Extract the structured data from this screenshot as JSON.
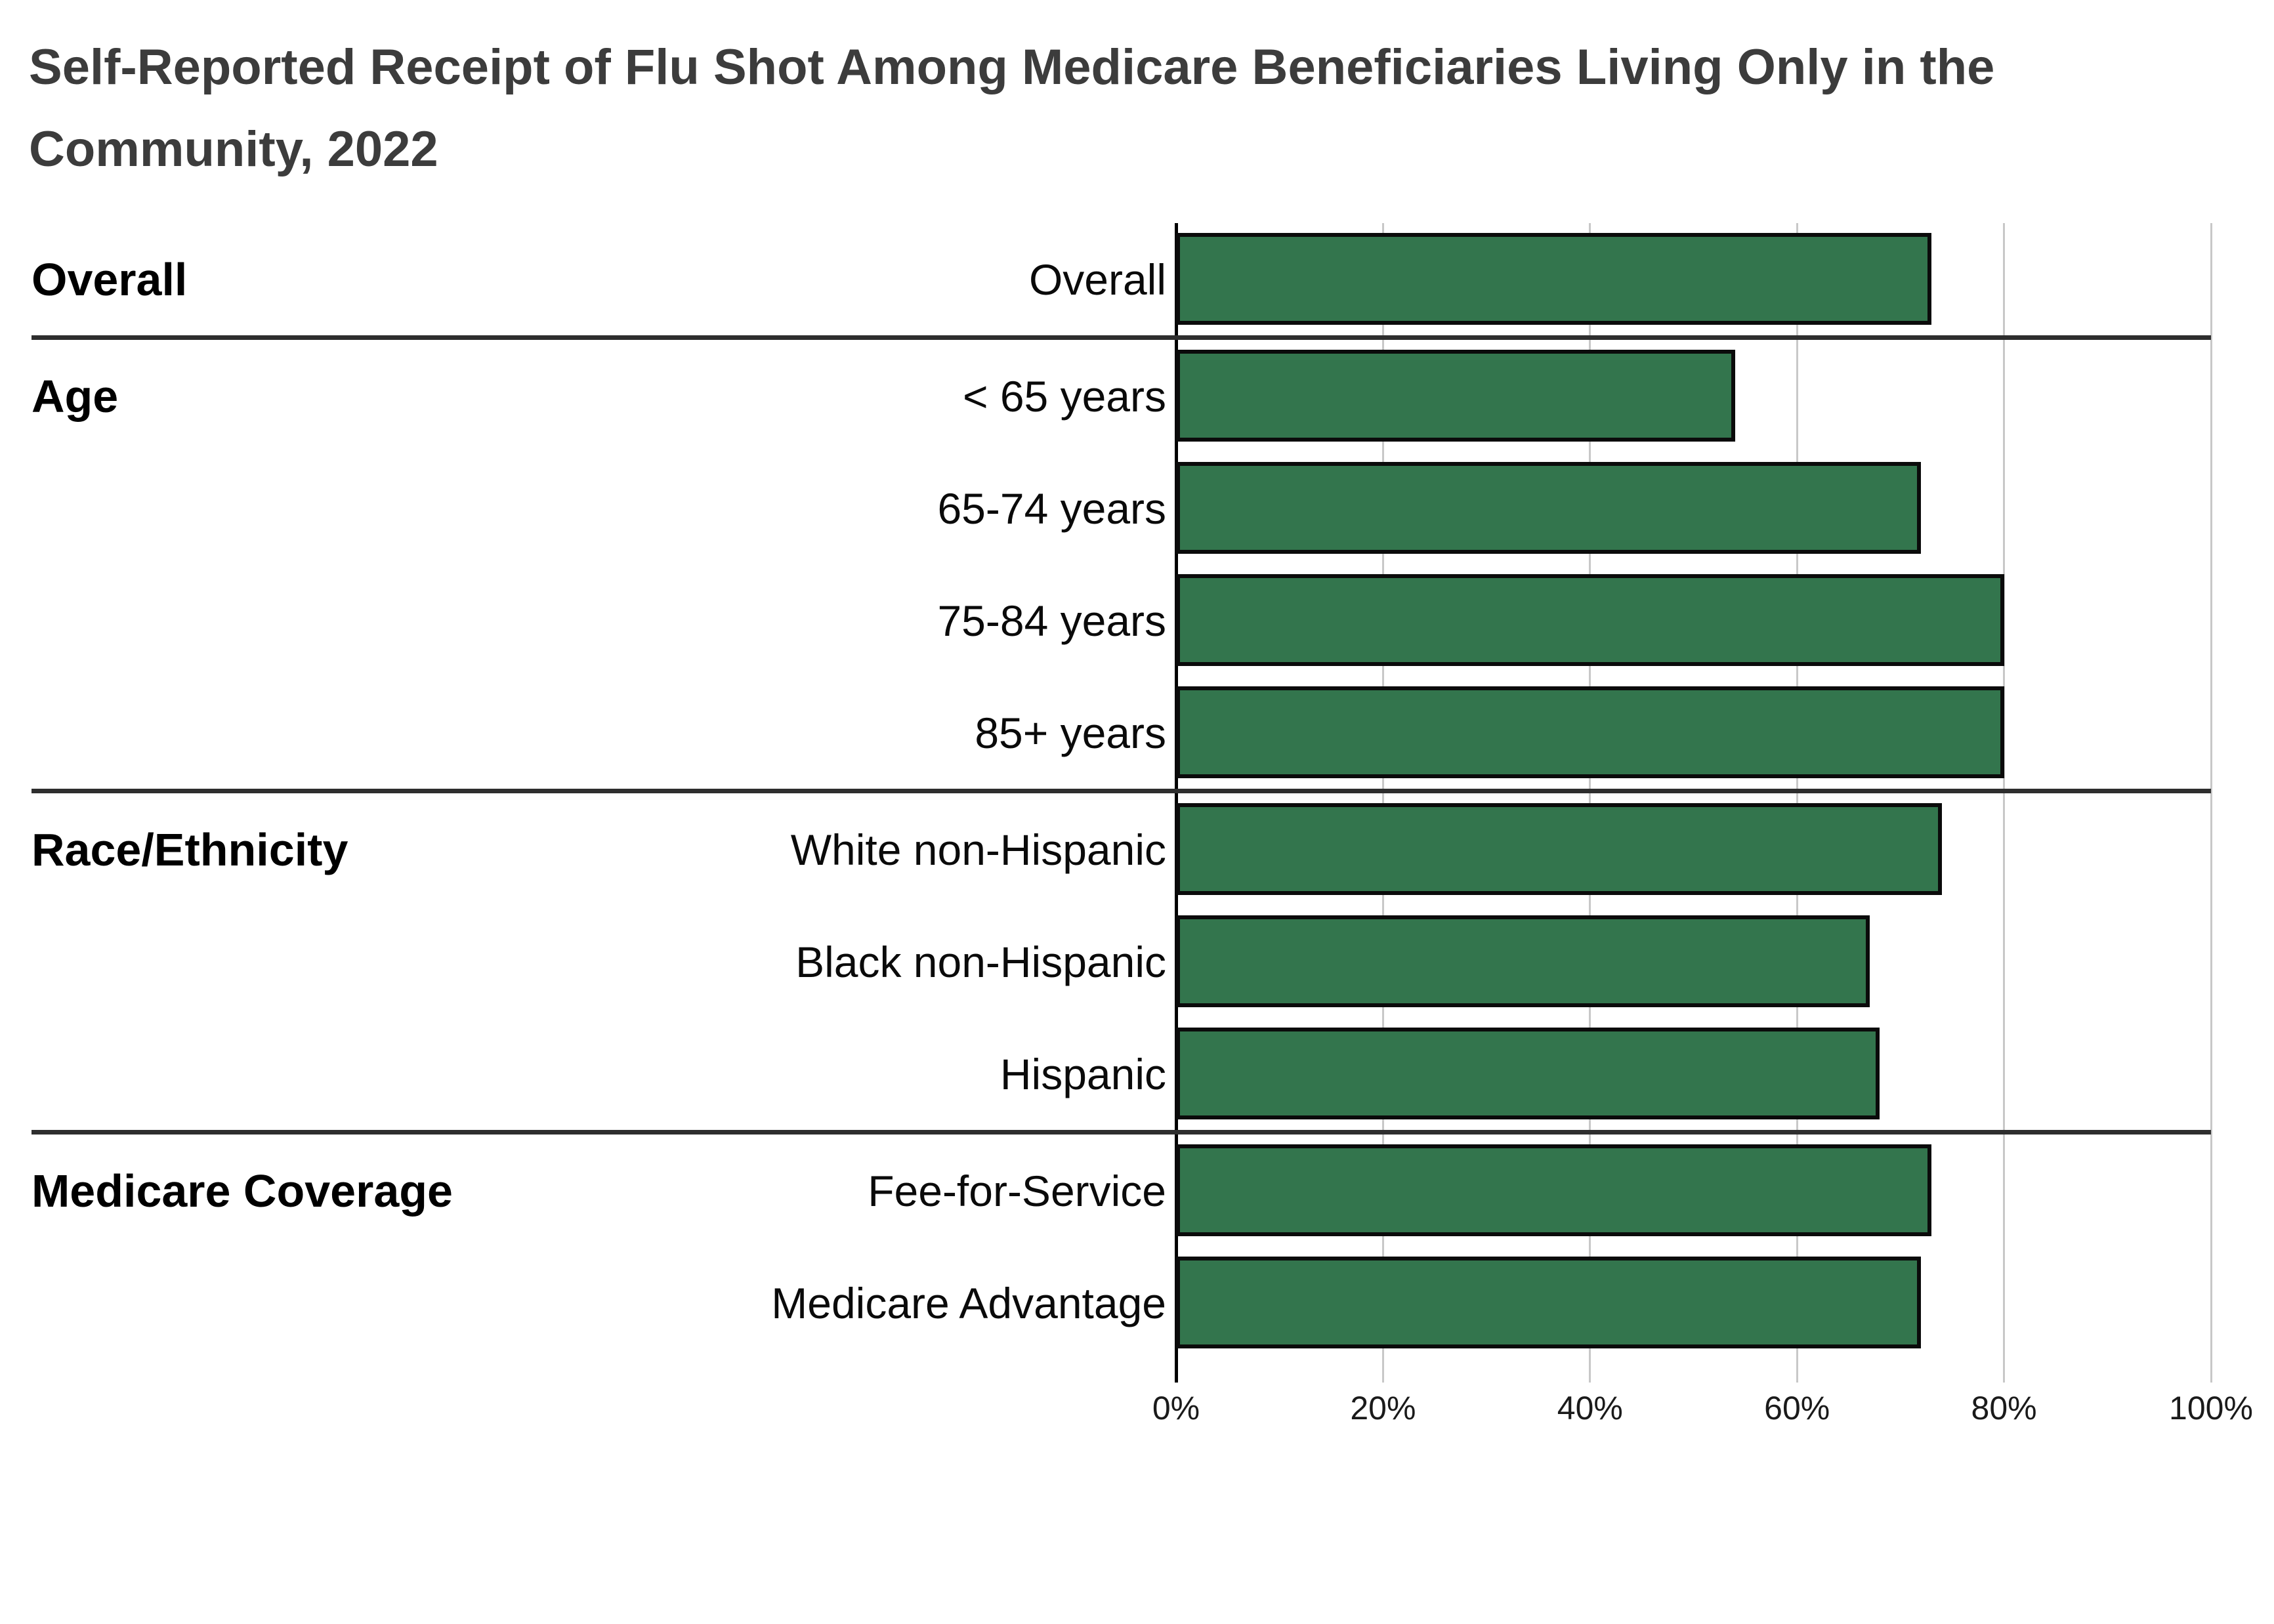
{
  "title": "Self-Reported Receipt of Flu Shot Among Medicare Beneficiaries Living Only in the Community, 2022",
  "colors": {
    "bar_fill": "#33754d",
    "bar_border": "#0b0b0b",
    "gridline": "#c8c8c8",
    "axis_line": "#000000",
    "section_divider": "#2e2e2e",
    "title_text": "#3c3c3c"
  },
  "chart_data": {
    "type": "bar",
    "orientation": "horizontal",
    "title": "Self-Reported Receipt of Flu Shot Among Medicare Beneficiaries Living Only in the Community, 2022",
    "xlabel": "",
    "ylabel": "",
    "xlim": [
      0,
      100
    ],
    "x_ticks": [
      0,
      20,
      40,
      60,
      80,
      100
    ],
    "x_tick_labels": [
      "0%",
      "20%",
      "40%",
      "60%",
      "80%",
      "100%"
    ],
    "grid": "vertical",
    "legend": "none",
    "categories": [
      "Overall",
      "< 65 years",
      "65-74 years",
      "75-84 years",
      "85+ years",
      "White non-Hispanic",
      "Black non-Hispanic",
      "Hispanic",
      "Fee-for-Service",
      "Medicare Advantage"
    ],
    "values": [
      73,
      54,
      72,
      80,
      80,
      74,
      67,
      68,
      73,
      72
    ],
    "unit": "%",
    "groups": [
      {
        "label": "Overall",
        "rows": [
          {
            "category": "Overall",
            "value": 73
          }
        ]
      },
      {
        "label": "Age",
        "rows": [
          {
            "category": "< 65 years",
            "value": 54
          },
          {
            "category": "65-74 years",
            "value": 72
          },
          {
            "category": "75-84 years",
            "value": 80
          },
          {
            "category": "85+ years",
            "value": 80
          }
        ]
      },
      {
        "label": "Race/Ethnicity",
        "rows": [
          {
            "category": "White non-Hispanic",
            "value": 74
          },
          {
            "category": "Black non-Hispanic",
            "value": 67
          },
          {
            "category": "Hispanic",
            "value": 68
          }
        ]
      },
      {
        "label": "Medicare Coverage",
        "rows": [
          {
            "category": "Fee-for-Service",
            "value": 73
          },
          {
            "category": "Medicare Advantage",
            "value": 72
          }
        ]
      }
    ]
  }
}
